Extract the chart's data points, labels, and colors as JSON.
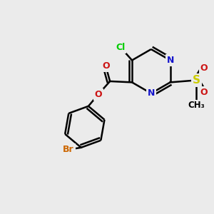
{
  "bg_color": "#ebebeb",
  "atom_colors": {
    "C": "#000000",
    "N": "#1414cc",
    "O": "#cc1414",
    "S": "#cccc00",
    "Cl": "#00cc00",
    "Br": "#cc6600"
  },
  "bond_color": "#000000",
  "bond_width": 1.8
}
